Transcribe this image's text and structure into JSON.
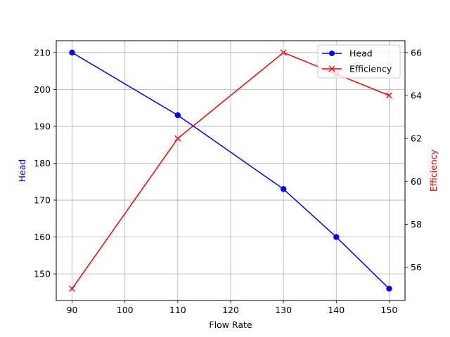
{
  "chart_data": {
    "type": "line",
    "title": "",
    "x": [
      90,
      110,
      130,
      140,
      150
    ],
    "xlabel": "Flow Rate",
    "xlim": [
      87,
      153
    ],
    "xticks": [
      "90",
      "100",
      "110",
      "120",
      "130",
      "140",
      "150"
    ],
    "grid": true,
    "legend_position": "top-right",
    "series": [
      {
        "name": "Head",
        "axis": "left",
        "color": "#0000ff",
        "marker": "circle",
        "values": [
          210,
          193,
          173,
          160,
          146
        ]
      },
      {
        "name": "Efficiency",
        "axis": "right",
        "color": "#ff0000",
        "marker": "x",
        "values": [
          55,
          62,
          66,
          65,
          64
        ]
      }
    ],
    "y_left": {
      "label": "Head",
      "color": "#0000ff",
      "lim": [
        142.8,
        213.2
      ],
      "ticks": [
        "150",
        "160",
        "170",
        "180",
        "190",
        "200",
        "210"
      ]
    },
    "y_right": {
      "label": "Efficiency",
      "color": "#ff0000",
      "lim": [
        54.45,
        66.55
      ],
      "ticks": [
        "56",
        "58",
        "60",
        "62",
        "64",
        "66"
      ]
    }
  }
}
